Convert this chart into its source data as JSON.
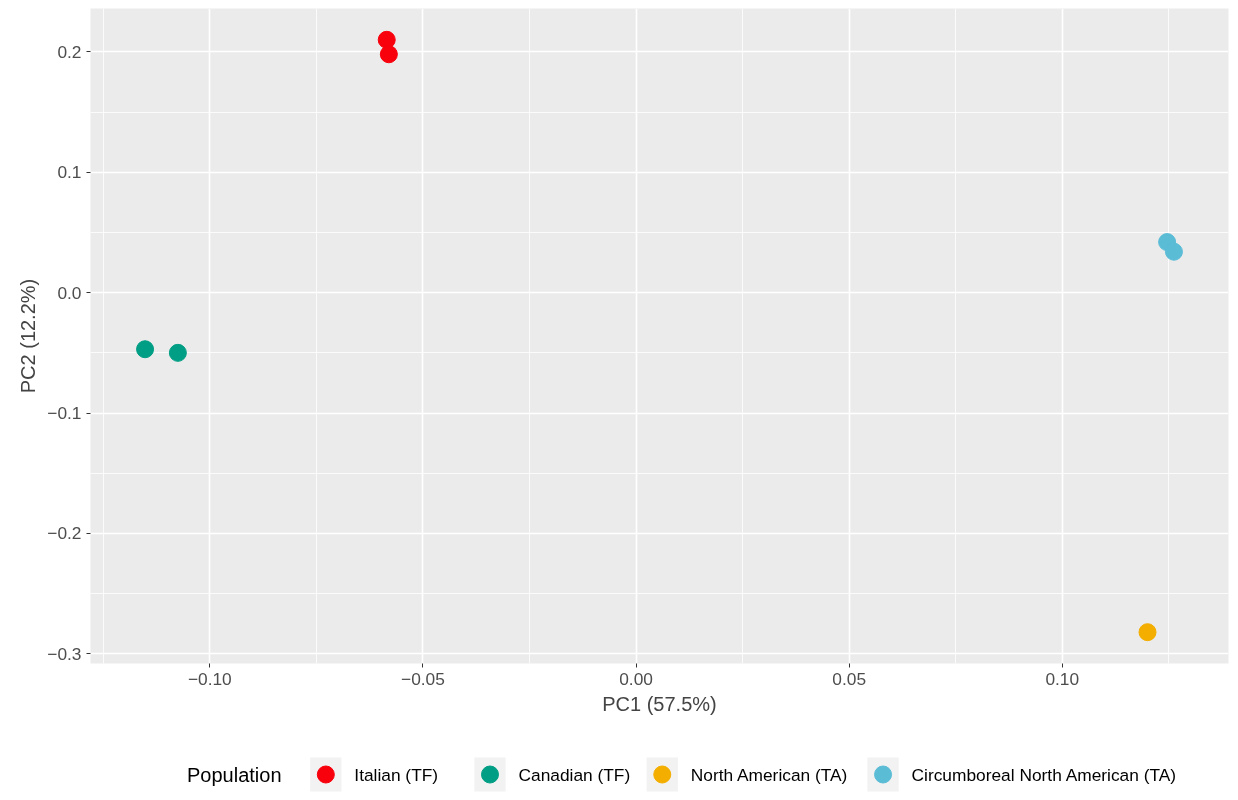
{
  "chart_data": {
    "type": "scatter",
    "xlabel": "PC1 (57.5%)",
    "ylabel": "PC2 (12.2%)",
    "legend_title": "Population",
    "xlim": [
      -0.128,
      0.139
    ],
    "ylim": [
      -0.308,
      0.236
    ],
    "xticks": [
      {
        "value": -0.1,
        "label": "−0.10"
      },
      {
        "value": -0.05,
        "label": "−0.05"
      },
      {
        "value": 0,
        "label": "0.00"
      },
      {
        "value": 0.05,
        "label": "0.05"
      },
      {
        "value": 0.1,
        "label": "0.10"
      }
    ],
    "yticks": [
      {
        "value": -0.3,
        "label": "−0.3"
      },
      {
        "value": -0.2,
        "label": "−0.2"
      },
      {
        "value": -0.1,
        "label": "−0.1"
      },
      {
        "value": 0,
        "label": "0.0"
      },
      {
        "value": 0.1,
        "label": "0.1"
      },
      {
        "value": 0.2,
        "label": "0.2"
      }
    ],
    "grid": true,
    "legend": "bottom",
    "marker": "circle",
    "series": [
      {
        "name": "Italian (TF)",
        "color": "#f8000c",
        "x": [
          -0.0585,
          -0.058
        ],
        "values": [
          0.21,
          0.198
        ]
      },
      {
        "name": "Canadian (TF)",
        "color": "#009e84",
        "x": [
          -0.1152,
          -0.1075
        ],
        "values": [
          -0.047,
          -0.05
        ]
      },
      {
        "name": "North American (TA)",
        "color": "#f3ae00",
        "x": [
          0.12
        ],
        "values": [
          -0.282
        ]
      },
      {
        "name": "Circumboreal North American (TA)",
        "color": "#5bbcd6",
        "x": [
          0.1246,
          0.1262
        ],
        "values": [
          0.042,
          0.034
        ]
      }
    ]
  }
}
